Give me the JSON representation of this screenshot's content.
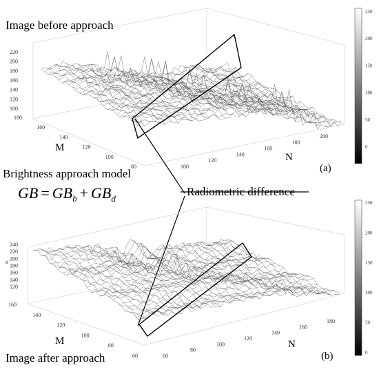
{
  "top_panel": {
    "title": "Image before approach",
    "panel_label": "(a)",
    "z_ticks": [
      "220",
      "200",
      "180",
      "160",
      "140",
      "120",
      "100"
    ],
    "m_ticks": [
      "180",
      "160",
      "140",
      "120",
      "100",
      "80"
    ],
    "n_ticks": [
      "100",
      "120",
      "140",
      "160",
      "180",
      "200"
    ],
    "m_label": "M",
    "n_label": "N",
    "colorbar_ticks": [
      "250",
      "200",
      "150",
      "100",
      "50",
      "0"
    ]
  },
  "middle": {
    "model_title": "Brightness approach model",
    "equation": {
      "lhs": "GB",
      "equals": "=",
      "term1": "GB",
      "sub1": "b",
      "plus": "+",
      "term2": "GB",
      "sub2": "d"
    },
    "callout": "Radiometric difference"
  },
  "bottom_panel": {
    "title": "Image after approach",
    "panel_label": "(b)",
    "z_ticks": [
      "240",
      "220",
      "200",
      "180",
      "160",
      "140",
      "120"
    ],
    "z_axis_glyph": "ø",
    "m_ticks": [
      "160",
      "140",
      "120",
      "100",
      "80",
      "60"
    ],
    "n_ticks": [
      "60",
      "80",
      "100",
      "120",
      "140",
      "160",
      "180"
    ],
    "m_label": "M",
    "n_label": "N",
    "colorbar_ticks": [
      "250",
      "200",
      "150",
      "100",
      "50",
      "0"
    ]
  },
  "colors": {
    "mesh": "#555555",
    "mesh_dark": "#333333",
    "grid": "#cccccc",
    "outline": "#000000"
  }
}
